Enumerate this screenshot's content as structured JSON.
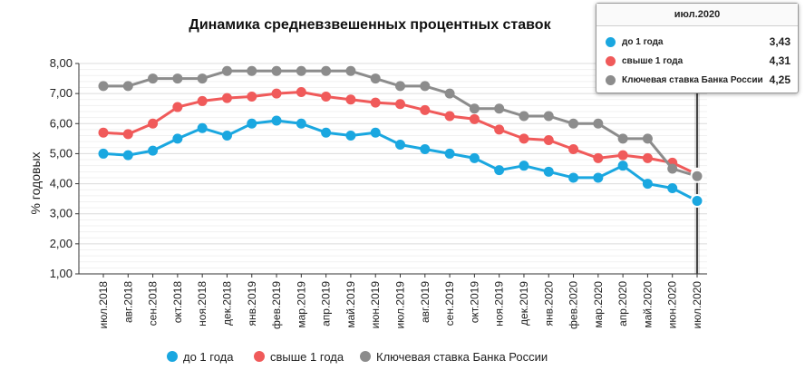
{
  "chart_data": {
    "type": "line",
    "title": "Динамика средневзвешенных процентных ставок",
    "ylabel": "% годовых",
    "xlabel": "",
    "ylim": [
      1,
      8
    ],
    "ytick_labels": [
      "1,00",
      "2,00",
      "3,00",
      "4,00",
      "5,00",
      "6,00",
      "7,00",
      "8,00"
    ],
    "grid": true,
    "legend_position": "bottom",
    "categories": [
      "июл.2018",
      "авг.2018",
      "сен.2018",
      "окт.2018",
      "ноя.2018",
      "дек.2018",
      "янв.2019",
      "фев.2019",
      "мар.2019",
      "апр.2019",
      "май.2019",
      "июн.2019",
      "июл.2019",
      "авг.2019",
      "сен.2019",
      "окт.2019",
      "ноя.2019",
      "дек.2019",
      "янв.2020",
      "фев.2020",
      "мар.2020",
      "апр.2020",
      "май.2020",
      "июн.2020",
      "июл.2020"
    ],
    "series": [
      {
        "name": "до 1 года",
        "color": "#1aa7e0",
        "values": [
          5.0,
          4.95,
          5.1,
          5.5,
          5.85,
          5.6,
          6.0,
          6.1,
          6.0,
          5.7,
          5.6,
          5.7,
          5.3,
          5.15,
          5.0,
          4.85,
          4.45,
          4.6,
          4.4,
          4.2,
          4.2,
          4.6,
          4.0,
          3.85,
          3.43
        ]
      },
      {
        "name": "свыше 1 года",
        "color": "#f05a5a",
        "values": [
          5.7,
          5.65,
          6.0,
          6.55,
          6.75,
          6.85,
          6.9,
          7.0,
          7.05,
          6.9,
          6.8,
          6.7,
          6.65,
          6.45,
          6.25,
          6.15,
          5.8,
          5.5,
          5.45,
          5.15,
          4.85,
          4.95,
          4.85,
          4.7,
          4.31
        ]
      },
      {
        "name": "Ключевая ставка Банка России",
        "color": "#8c8c8c",
        "values": [
          7.25,
          7.25,
          7.5,
          7.5,
          7.5,
          7.75,
          7.75,
          7.75,
          7.75,
          7.75,
          7.75,
          7.5,
          7.25,
          7.25,
          7.0,
          6.5,
          6.5,
          6.25,
          6.25,
          6.0,
          6.0,
          5.5,
          5.5,
          4.5,
          4.25
        ]
      }
    ]
  },
  "tooltip": {
    "header": "июл.2020",
    "rows": [
      {
        "label": "до 1 года",
        "value": "3,43",
        "color": "#1aa7e0"
      },
      {
        "label": "свыше 1 года",
        "value": "4,31",
        "color": "#f05a5a"
      },
      {
        "label": "Ключевая ставка Банка России",
        "value": "4,25",
        "color": "#8c8c8c"
      }
    ]
  }
}
